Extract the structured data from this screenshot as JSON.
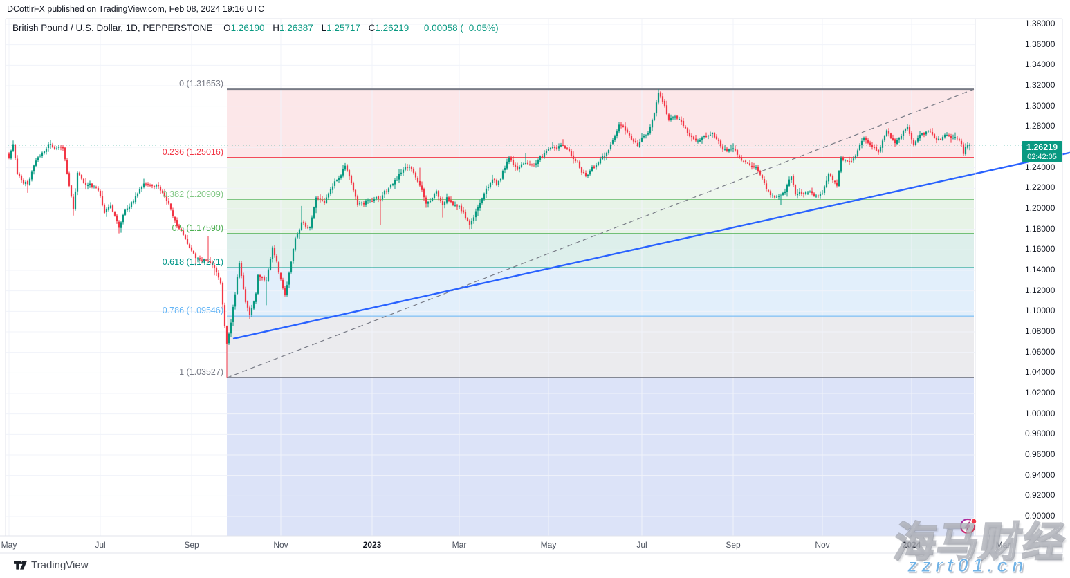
{
  "header": {
    "byline": "DCottlrFX published on TradingView.com, Feb 08, 2024 19:16 UTC"
  },
  "legend": {
    "title": "British Pound / U.S. Dollar, 1D, PEPPERSTONE",
    "o_label": "O",
    "o": "1.26190",
    "h_label": "H",
    "h": "1.26387",
    "l_label": "L",
    "l": "1.25717",
    "c_label": "C",
    "c": "1.26219",
    "change": "−0.00058 (−0.05%)"
  },
  "price_axis": {
    "labels": [
      "1.38000",
      "1.36000",
      "1.34000",
      "1.32000",
      "1.30000",
      "1.28000",
      "1.24000",
      "1.22000",
      "1.20000",
      "1.18000",
      "1.16000",
      "1.14000",
      "1.12000",
      "1.10000",
      "1.08000",
      "1.06000",
      "1.04000",
      "1.02000",
      "1.00000",
      "0.98000",
      "0.96000",
      "0.94000",
      "0.92000",
      "0.90000"
    ],
    "last_price": "1.26219",
    "countdown": "02:42:05",
    "badge_color": "#089981"
  },
  "time_axis": {
    "ticks": [
      {
        "label": "May",
        "date": "2022-05-02",
        "bold": false
      },
      {
        "label": "Jul",
        "date": "2022-07-01",
        "bold": false
      },
      {
        "label": "Sep",
        "date": "2022-09-01",
        "bold": false
      },
      {
        "label": "Nov",
        "date": "2022-11-01",
        "bold": false
      },
      {
        "label": "2023",
        "date": "2023-01-02",
        "bold": true
      },
      {
        "label": "Mar",
        "date": "2023-03-01",
        "bold": false
      },
      {
        "label": "May",
        "date": "2023-05-01",
        "bold": false
      },
      {
        "label": "Jul",
        "date": "2023-07-03",
        "bold": false
      },
      {
        "label": "Sep",
        "date": "2023-09-01",
        "bold": false
      },
      {
        "label": "Nov",
        "date": "2023-11-01",
        "bold": false
      },
      {
        "label": "2024",
        "date": "2024-01-01",
        "bold": true
      },
      {
        "label": "Mar",
        "date": "2024-03-01",
        "bold": false
      }
    ]
  },
  "footer": {
    "logo_text": "TradingView"
  },
  "watermark": {
    "cn": "海马财经",
    "url": "zzrt01.cn"
  },
  "colors": {
    "up": "#089981",
    "down": "#f23645",
    "trendline_blue": "#2962ff",
    "grid": "#f0f3fa",
    "frame": "#e0e3eb",
    "dashed_gray": "#787b86",
    "current_price_line": "#089981"
  },
  "chart_data": {
    "type": "candlestick",
    "title": "British Pound / U.S. Dollar",
    "interval": "1D",
    "exchange": "PEPPERSTONE",
    "x_range": [
      "2022-05-02",
      "2024-02-08"
    ],
    "ylim": [
      0.881,
      1.385
    ],
    "y_tick_step": 0.02,
    "grid": true,
    "last_ohlc": {
      "date": "2024-02-08",
      "o": 1.2619,
      "h": 1.26387,
      "l": 1.25717,
      "c": 1.26219,
      "change": -0.00058,
      "change_pct": -0.05
    },
    "fib_retracement": {
      "high": 1.31653,
      "low": 1.03527,
      "low_date": "2022-09-26",
      "levels": [
        {
          "ratio": 0,
          "price": 1.31653,
          "label": "0 (1.31653)",
          "color": "#787b86"
        },
        {
          "ratio": 0.236,
          "price": 1.25016,
          "label": "0.236 (1.25016)",
          "color": "#f23645"
        },
        {
          "ratio": 0.382,
          "price": 1.20909,
          "label": "0.382 (1.20909)",
          "color": "#81c784"
        },
        {
          "ratio": 0.5,
          "price": 1.1759,
          "label": "0.5 (1.17590)",
          "color": "#4caf50"
        },
        {
          "ratio": 0.618,
          "price": 1.14271,
          "label": "0.618 (1.14271)",
          "color": "#009688"
        },
        {
          "ratio": 0.786,
          "price": 1.09546,
          "label": "0.786 (1.09546)",
          "color": "#64b5f6"
        },
        {
          "ratio": 1,
          "price": 1.03527,
          "label": "1 (1.03527)",
          "color": "#787b86"
        }
      ],
      "band_colors": [
        "#fce7e9",
        "#eff7ee",
        "#e7f3e7",
        "#ddefeb",
        "#e2effb",
        "#ebebee",
        "#dce3f8"
      ]
    },
    "trendline": {
      "color": "#2962ff",
      "from": {
        "date": "2022-09-29",
        "price": 1.0733
      },
      "to": {
        "date": "2024-02-08",
        "price": 1.233
      },
      "extend_right": true
    },
    "current_price": 1.26219,
    "waypoints": [
      {
        "d": "2022-05-02",
        "c": 1.2496
      },
      {
        "d": "2022-05-04",
        "c": 1.263,
        "h": 1.2666
      },
      {
        "d": "2022-05-06",
        "c": 1.234
      },
      {
        "d": "2022-05-13",
        "c": 1.224,
        "l": 1.2156
      },
      {
        "d": "2022-05-19",
        "c": 1.247
      },
      {
        "d": "2022-05-27",
        "c": 1.2631
      },
      {
        "d": "2022-06-07",
        "c": 1.259
      },
      {
        "d": "2022-06-14",
        "c": 1.1993,
        "l": 1.1934
      },
      {
        "d": "2022-06-16",
        "c": 1.2352
      },
      {
        "d": "2022-06-22",
        "c": 1.223
      },
      {
        "d": "2022-06-30",
        "c": 1.2178
      },
      {
        "d": "2022-07-05",
        "c": 1.196
      },
      {
        "d": "2022-07-08",
        "c": 1.203
      },
      {
        "d": "2022-07-14",
        "c": 1.1815,
        "l": 1.176
      },
      {
        "d": "2022-07-19",
        "c": 1.199
      },
      {
        "d": "2022-07-27",
        "c": 1.215
      },
      {
        "d": "2022-08-01",
        "c": 1.2246,
        "h": 1.2293
      },
      {
        "d": "2022-08-10",
        "c": 1.222
      },
      {
        "d": "2022-08-17",
        "c": 1.205
      },
      {
        "d": "2022-08-23",
        "c": 1.183
      },
      {
        "d": "2022-08-31",
        "c": 1.1622
      },
      {
        "d": "2022-09-05",
        "c": 1.152,
        "l": 1.1444
      },
      {
        "d": "2022-09-13",
        "c": 1.149,
        "h": 1.1733
      },
      {
        "d": "2022-09-16",
        "c": 1.142,
        "l": 1.1351
      },
      {
        "d": "2022-09-21",
        "c": 1.127
      },
      {
        "d": "2022-09-23",
        "c": 1.0856,
        "l": 1.084
      },
      {
        "d": "2022-09-26",
        "c": 1.0686,
        "l": 1.035
      },
      {
        "d": "2022-09-28",
        "c": 1.089
      },
      {
        "d": "2022-09-30",
        "c": 1.1166
      },
      {
        "d": "2022-10-04",
        "c": 1.1473,
        "h": 1.1495
      },
      {
        "d": "2022-10-07",
        "c": 1.1091
      },
      {
        "d": "2022-10-11",
        "c": 1.0962,
        "l": 1.0923
      },
      {
        "d": "2022-10-14",
        "c": 1.1174
      },
      {
        "d": "2022-10-17",
        "c": 1.1355
      },
      {
        "d": "2022-10-21",
        "c": 1.1301,
        "l": 1.106
      },
      {
        "d": "2022-10-26",
        "c": 1.1625
      },
      {
        "d": "2022-11-03",
        "c": 1.116,
        "l": 1.1145
      },
      {
        "d": "2022-11-10",
        "c": 1.1714
      },
      {
        "d": "2022-11-15",
        "c": 1.1868,
        "h": 1.2028
      },
      {
        "d": "2022-11-21",
        "c": 1.182
      },
      {
        "d": "2022-11-24",
        "c": 1.211
      },
      {
        "d": "2022-11-30",
        "c": 1.2058
      },
      {
        "d": "2022-12-05",
        "c": 1.219
      },
      {
        "d": "2022-12-14",
        "c": 1.242,
        "h": 1.2446
      },
      {
        "d": "2022-12-20",
        "c": 1.218
      },
      {
        "d": "2022-12-22",
        "c": 1.204
      },
      {
        "d": "2022-12-30",
        "c": 1.2083
      },
      {
        "d": "2023-01-06",
        "c": 1.209,
        "l": 1.1841
      },
      {
        "d": "2023-01-13",
        "c": 1.223
      },
      {
        "d": "2023-01-23",
        "c": 1.238
      },
      {
        "d": "2023-01-26",
        "c": 1.241
      },
      {
        "d": "2023-02-02",
        "c": 1.2226,
        "h": 1.2401
      },
      {
        "d": "2023-02-07",
        "c": 1.205
      },
      {
        "d": "2023-02-14",
        "c": 1.2173
      },
      {
        "d": "2023-02-17",
        "c": 1.204,
        "l": 1.1915
      },
      {
        "d": "2023-02-21",
        "c": 1.2113
      },
      {
        "d": "2023-03-01",
        "c": 1.2025
      },
      {
        "d": "2023-03-08",
        "c": 1.1845,
        "l": 1.1803
      },
      {
        "d": "2023-03-15",
        "c": 1.2057
      },
      {
        "d": "2023-03-23",
        "c": 1.2285
      },
      {
        "d": "2023-03-27",
        "c": 1.223
      },
      {
        "d": "2023-04-04",
        "c": 1.2498
      },
      {
        "d": "2023-04-10",
        "c": 1.238
      },
      {
        "d": "2023-04-14",
        "c": 1.2445,
        "h": 1.2546
      },
      {
        "d": "2023-04-21",
        "c": 1.2442
      },
      {
        "d": "2023-04-28",
        "c": 1.2567
      },
      {
        "d": "2023-05-10",
        "c": 1.262,
        "h": 1.2679
      },
      {
        "d": "2023-05-17",
        "c": 1.2485
      },
      {
        "d": "2023-05-25",
        "c": 1.232,
        "l": 1.2308
      },
      {
        "d": "2023-06-02",
        "c": 1.245
      },
      {
        "d": "2023-06-09",
        "c": 1.2573
      },
      {
        "d": "2023-06-16",
        "c": 1.282
      },
      {
        "d": "2023-06-22",
        "c": 1.2745
      },
      {
        "d": "2023-06-29",
        "c": 1.2612
      },
      {
        "d": "2023-07-06",
        "c": 1.274
      },
      {
        "d": "2023-07-11",
        "c": 1.293
      },
      {
        "d": "2023-07-13",
        "c": 1.313,
        "h": 1.31653
      },
      {
        "d": "2023-07-14",
        "c": 1.3095
      },
      {
        "d": "2023-07-20",
        "c": 1.287
      },
      {
        "d": "2023-07-25",
        "c": 1.29
      },
      {
        "d": "2023-07-28",
        "c": 1.285
      },
      {
        "d": "2023-08-03",
        "c": 1.271
      },
      {
        "d": "2023-08-10",
        "c": 1.2675
      },
      {
        "d": "2023-08-15",
        "c": 1.2705
      },
      {
        "d": "2023-08-18",
        "c": 1.2735
      },
      {
        "d": "2023-08-25",
        "c": 1.2578
      },
      {
        "d": "2023-09-01",
        "c": 1.259
      },
      {
        "d": "2023-09-07",
        "c": 1.247
      },
      {
        "d": "2023-09-14",
        "c": 1.241
      },
      {
        "d": "2023-09-21",
        "c": 1.2295
      },
      {
        "d": "2023-09-27",
        "c": 1.2135,
        "l": 1.211
      },
      {
        "d": "2023-10-04",
        "c": 1.213,
        "l": 1.2037
      },
      {
        "d": "2023-10-11",
        "c": 1.2315
      },
      {
        "d": "2023-10-13",
        "c": 1.214
      },
      {
        "d": "2023-10-20",
        "c": 1.2163
      },
      {
        "d": "2023-10-26",
        "c": 1.2125
      },
      {
        "d": "2023-11-01",
        "c": 1.215
      },
      {
        "d": "2023-11-06",
        "c": 1.234
      },
      {
        "d": "2023-11-10",
        "c": 1.2225
      },
      {
        "d": "2023-11-14",
        "c": 1.25
      },
      {
        "d": "2023-11-17",
        "c": 1.2462
      },
      {
        "d": "2023-11-22",
        "c": 1.249
      },
      {
        "d": "2023-11-29",
        "c": 1.2695
      },
      {
        "d": "2023-12-08",
        "c": 1.255
      },
      {
        "d": "2023-12-14",
        "c": 1.2765
      },
      {
        "d": "2023-12-20",
        "c": 1.264
      },
      {
        "d": "2023-12-28",
        "c": 1.28,
        "h": 1.2827
      },
      {
        "d": "2024-01-02",
        "c": 1.262
      },
      {
        "d": "2024-01-05",
        "c": 1.2722
      },
      {
        "d": "2024-01-12",
        "c": 1.2755
      },
      {
        "d": "2024-01-17",
        "c": 1.2675
      },
      {
        "d": "2024-01-24",
        "c": 1.272
      },
      {
        "d": "2024-01-31",
        "c": 1.2686
      },
      {
        "d": "2024-02-02",
        "c": 1.2632
      },
      {
        "d": "2024-02-05",
        "c": 1.2535,
        "l": 1.2518
      },
      {
        "d": "2024-02-07",
        "c": 1.2625
      },
      {
        "d": "2024-02-08",
        "c": 1.26219
      }
    ]
  }
}
